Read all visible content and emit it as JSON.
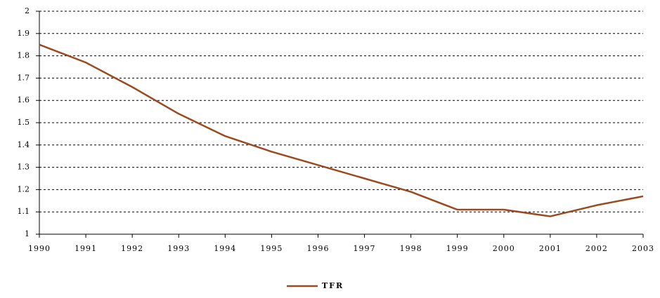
{
  "chart_data": {
    "type": "line",
    "x": [
      1990,
      1991,
      1992,
      1993,
      1994,
      1995,
      1996,
      1997,
      1998,
      1999,
      2000,
      2001,
      2002,
      2003
    ],
    "series": [
      {
        "name": "TFR",
        "color": "#9a4a1e",
        "values": [
          1.85,
          1.77,
          1.66,
          1.54,
          1.44,
          1.37,
          1.31,
          1.25,
          1.19,
          1.11,
          1.11,
          1.08,
          1.13,
          1.17
        ]
      }
    ],
    "xlim": [
      1990,
      2003
    ],
    "xticks": [
      1990,
      1991,
      1992,
      1993,
      1994,
      1995,
      1996,
      1997,
      1998,
      1999,
      2000,
      2001,
      2002,
      2003
    ],
    "ylim": [
      1,
      2
    ],
    "yticks": [
      1,
      1.1,
      1.2,
      1.3,
      1.4,
      1.5,
      1.6,
      1.7,
      1.8,
      1.9,
      2
    ],
    "grid": true,
    "legend": "bottom"
  }
}
